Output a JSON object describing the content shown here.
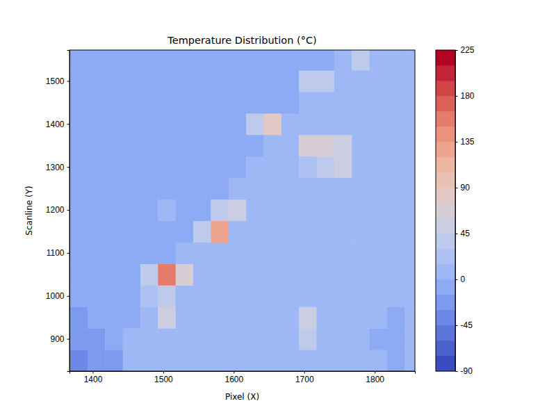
{
  "chart_data": {
    "type": "contour",
    "title": "Temperature Distribution (°C)",
    "x_label": "Pixel (X)",
    "y_label": "Scanline (Y)",
    "xlim": [
      1367,
      1857
    ],
    "ylim": [
      825,
      1572
    ],
    "xticks": [
      1400,
      1500,
      1600,
      1700,
      1800
    ],
    "yticks": [
      900,
      1000,
      1100,
      1200,
      1300,
      1400,
      1500
    ],
    "x": [
      1380,
      1405,
      1430,
      1455,
      1480,
      1505,
      1530,
      1555,
      1580,
      1605,
      1630,
      1655,
      1680,
      1705,
      1730,
      1755,
      1780,
      1805,
      1830,
      1855
    ],
    "y": [
      850,
      900,
      950,
      1000,
      1050,
      1100,
      1150,
      1200,
      1250,
      1300,
      1350,
      1400,
      1450,
      1500,
      1550
    ],
    "z": [
      [
        -35,
        -30,
        -20,
        8,
        8,
        8,
        8,
        8,
        8,
        8,
        8,
        8,
        8,
        8,
        8,
        8,
        8,
        8,
        -3,
        8
      ],
      [
        -30,
        -20,
        -8,
        8,
        8,
        8,
        8,
        8,
        8,
        8,
        8,
        8,
        8,
        40,
        8,
        8,
        8,
        -3,
        -3,
        8
      ],
      [
        -20,
        -8,
        -8,
        -8,
        8,
        45,
        8,
        8,
        8,
        8,
        8,
        8,
        8,
        50,
        8,
        8,
        8,
        8,
        -3,
        8
      ],
      [
        -8,
        -8,
        -8,
        -8,
        20,
        40,
        8,
        8,
        8,
        8,
        8,
        8,
        8,
        8,
        8,
        8,
        8,
        8,
        8,
        8
      ],
      [
        -8,
        -8,
        -8,
        -8,
        40,
        150,
        60,
        8,
        8,
        8,
        8,
        8,
        8,
        8,
        8,
        8,
        8,
        8,
        8,
        8
      ],
      [
        -8,
        -8,
        -8,
        -8,
        -8,
        -8,
        8,
        8,
        8,
        8,
        8,
        8,
        8,
        8,
        8,
        8,
        8,
        8,
        8,
        8
      ],
      [
        -8,
        -8,
        -8,
        -8,
        -8,
        -8,
        -8,
        30,
        120,
        8,
        8,
        8,
        8,
        8,
        8,
        8,
        8,
        8,
        8,
        8
      ],
      [
        -8,
        -8,
        -8,
        -8,
        -8,
        5,
        -8,
        -8,
        30,
        50,
        8,
        8,
        8,
        8,
        8,
        8,
        8,
        8,
        8,
        8
      ],
      [
        -8,
        -8,
        -8,
        -8,
        -8,
        -8,
        -8,
        -8,
        -8,
        8,
        8,
        8,
        8,
        8,
        8,
        8,
        8,
        8,
        8,
        8
      ],
      [
        -8,
        -8,
        -8,
        -8,
        -8,
        -8,
        -8,
        -8,
        -8,
        -8,
        8,
        8,
        8,
        25,
        40,
        50,
        8,
        8,
        8,
        8
      ],
      [
        -8,
        -8,
        -8,
        -8,
        -8,
        -8,
        -8,
        -8,
        -8,
        -8,
        -8,
        8,
        8,
        60,
        70,
        55,
        8,
        8,
        8,
        8
      ],
      [
        -8,
        -8,
        -8,
        -8,
        -8,
        -8,
        -8,
        -8,
        -8,
        -8,
        30,
        75,
        8,
        8,
        8,
        8,
        8,
        8,
        8,
        8
      ],
      [
        -8,
        -8,
        -8,
        -8,
        -8,
        -8,
        -8,
        -8,
        -8,
        -8,
        -8,
        -8,
        -8,
        8,
        8,
        8,
        8,
        8,
        8,
        8
      ],
      [
        -8,
        -8,
        -8,
        -8,
        -8,
        -8,
        -8,
        -8,
        -8,
        -8,
        -8,
        -8,
        -8,
        30,
        40,
        8,
        8,
        8,
        8,
        8
      ],
      [
        -8,
        -8,
        -8,
        -8,
        -8,
        -8,
        -8,
        -8,
        -8,
        -8,
        -8,
        -8,
        -8,
        -8,
        -8,
        8,
        35,
        8,
        8,
        8
      ]
    ],
    "colorbar": {
      "range": [
        -90,
        225
      ],
      "ticks": [
        -90,
        -45,
        0,
        45,
        90,
        135,
        180,
        225
      ],
      "levels": [
        -90,
        -75,
        -60,
        -45,
        -30,
        -15,
        0,
        15,
        30,
        45,
        60,
        75,
        90,
        105,
        120,
        135,
        150,
        165,
        180,
        195,
        210,
        225
      ]
    }
  }
}
